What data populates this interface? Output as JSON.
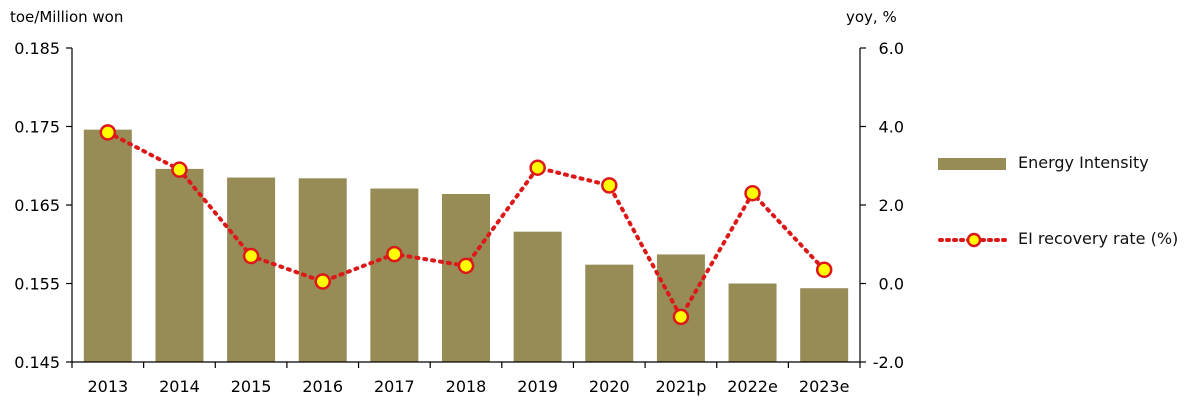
{
  "chart_data": {
    "type": "bar",
    "categories": [
      "2013",
      "2014",
      "2015",
      "2016",
      "2017",
      "2018",
      "2019",
      "2020",
      "2021p",
      "2022e",
      "2023e"
    ],
    "series": [
      {
        "name": "Energy Intensity",
        "type": "bar",
        "axis": "left",
        "color": "#978b56",
        "values": [
          0.1746,
          0.1696,
          0.1685,
          0.1684,
          0.1671,
          0.1664,
          0.1616,
          0.1574,
          0.1587,
          0.155,
          0.1544
        ]
      },
      {
        "name": "EI recovery rate (%)",
        "type": "line",
        "axis": "right",
        "color": "#dd1818",
        "marker_fill": "#ffff00",
        "values": [
          3.85,
          2.9,
          0.7,
          0.05,
          0.75,
          0.45,
          2.95,
          2.5,
          -0.85,
          2.3,
          0.35
        ]
      }
    ],
    "left_axis": {
      "unit_label": "toe/Million won",
      "ylim": [
        0.145,
        0.185
      ],
      "ticks": [
        "0.145",
        "0.155",
        "0.165",
        "0.175",
        "0.185"
      ]
    },
    "right_axis": {
      "unit_label": "yoy, %",
      "ylim": [
        -2.0,
        6.0
      ],
      "ticks": [
        "-2.0",
        "0.0",
        "2.0",
        "4.0",
        "6.0"
      ]
    },
    "grid": false,
    "legend_position": "right"
  }
}
